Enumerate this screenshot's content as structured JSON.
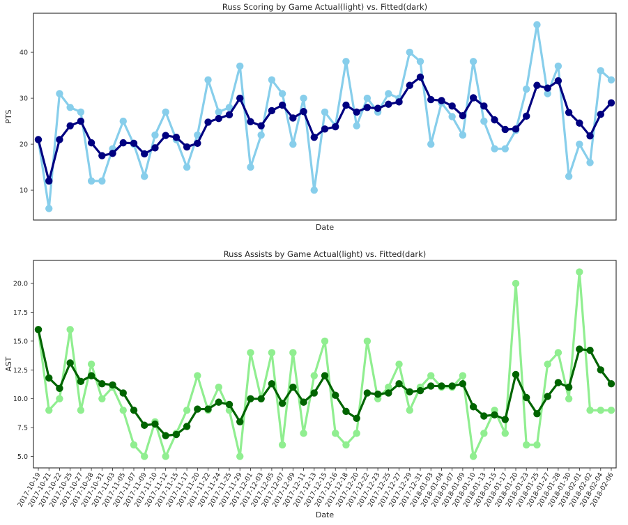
{
  "chart_data": [
    {
      "type": "line",
      "title": "Russ Scoring by Game Actual(light) vs. Fitted(dark)",
      "xlabel": "Date",
      "ylabel": "PTS",
      "ylim": [
        3.5,
        48.5
      ],
      "yticks": [
        10,
        20,
        30,
        40
      ],
      "grid": false,
      "x": [
        "2017-10-19",
        "2017-10-21",
        "2017-10-22",
        "2017-10-25",
        "2017-10-27",
        "2017-10-28",
        "2017-10-31",
        "2017-11-03",
        "2017-11-05",
        "2017-11-07",
        "2017-11-09",
        "2017-11-10",
        "2017-11-12",
        "2017-11-15",
        "2017-11-17",
        "2017-11-20",
        "2017-11-22",
        "2017-11-24",
        "2017-11-25",
        "2017-11-29",
        "2017-12-01",
        "2017-12-03",
        "2017-12-05",
        "2017-12-07",
        "2017-12-09",
        "2017-12-11",
        "2017-12-13",
        "2017-12-15",
        "2017-12-16",
        "2017-12-18",
        "2017-12-20",
        "2017-12-22",
        "2017-12-23",
        "2017-12-25",
        "2017-12-27",
        "2017-12-29",
        "2017-12-31",
        "2018-01-03",
        "2018-01-04",
        "2018-01-07",
        "2018-01-09",
        "2018-01-10",
        "2018-01-13",
        "2018-01-15",
        "2018-01-17",
        "2018-01-20",
        "2018-01-23",
        "2018-01-25",
        "2018-01-27",
        "2018-01-28",
        "2018-01-30",
        "2018-02-01",
        "2018-02-02",
        "2018-02-04",
        "2018-02-06"
      ],
      "series": [
        {
          "name": "Actual",
          "color": "#87ceeb",
          "values": [
            21,
            6,
            31,
            28,
            27,
            12,
            12,
            19,
            25,
            20,
            13,
            22,
            27,
            21,
            15,
            22,
            34,
            27,
            28,
            37,
            15,
            22,
            34,
            31,
            20,
            30,
            10,
            27,
            24,
            38,
            24,
            30,
            27,
            31,
            30,
            40,
            38,
            20,
            29,
            26,
            22,
            38,
            25,
            19,
            19,
            23,
            32,
            46,
            31,
            37,
            13,
            20,
            16,
            36,
            34
          ]
        },
        {
          "name": "Fitted",
          "color": "#000080",
          "values": [
            21,
            12,
            21,
            24,
            25,
            20.3,
            17.5,
            18,
            20.3,
            20.2,
            17.9,
            19.2,
            21.9,
            21.5,
            19.4,
            20.2,
            24.8,
            25.6,
            26.4,
            30,
            24.9,
            24,
            27.3,
            28.5,
            25.7,
            27.1,
            21.5,
            23.3,
            23.8,
            28.5,
            27,
            28,
            27.8,
            28.7,
            29.2,
            32.8,
            34.6,
            29.7,
            29.5,
            28.3,
            26.2,
            30.1,
            28.3,
            25.3,
            23.2,
            23.3,
            26.1,
            32.8,
            32.2,
            33.8,
            26.9,
            24.6,
            21.8,
            26.5,
            29
          ]
        }
      ]
    },
    {
      "type": "line",
      "title": "Russ Assists by Game Actual(light) vs. Fitted(dark)",
      "xlabel": "Date",
      "ylabel": "AST",
      "ylim": [
        4.0,
        22.0
      ],
      "yticks": [
        5.0,
        7.5,
        10.0,
        12.5,
        15.0,
        17.5,
        20.0
      ],
      "ytick_labels": [
        "5.0",
        "7.5",
        "10.0",
        "12.5",
        "15.0",
        "17.5",
        "20.0"
      ],
      "grid": false,
      "x": [
        "2017-10-19",
        "2017-10-21",
        "2017-10-22",
        "2017-10-25",
        "2017-10-27",
        "2017-10-28",
        "2017-10-31",
        "2017-11-03",
        "2017-11-05",
        "2017-11-07",
        "2017-11-09",
        "2017-11-10",
        "2017-11-12",
        "2017-11-15",
        "2017-11-17",
        "2017-11-20",
        "2017-11-22",
        "2017-11-24",
        "2017-11-25",
        "2017-11-29",
        "2017-12-01",
        "2017-12-03",
        "2017-12-05",
        "2017-12-07",
        "2017-12-09",
        "2017-12-11",
        "2017-12-13",
        "2017-12-15",
        "2017-12-16",
        "2017-12-18",
        "2017-12-20",
        "2017-12-22",
        "2017-12-23",
        "2017-12-25",
        "2017-12-27",
        "2017-12-29",
        "2017-12-31",
        "2018-01-03",
        "2018-01-04",
        "2018-01-07",
        "2018-01-09",
        "2018-01-10",
        "2018-01-13",
        "2018-01-15",
        "2018-01-17",
        "2018-01-20",
        "2018-01-23",
        "2018-01-25",
        "2018-01-27",
        "2018-01-28",
        "2018-01-30",
        "2018-02-01",
        "2018-02-02",
        "2018-02-04",
        "2018-02-06"
      ],
      "series": [
        {
          "name": "Actual",
          "color": "#90ee90",
          "values": [
            16,
            9,
            10,
            16,
            9,
            13,
            10,
            11,
            9,
            6,
            5,
            8,
            5,
            7,
            9,
            12,
            9,
            11,
            9,
            5,
            14,
            10,
            14,
            6,
            14,
            7,
            12,
            15,
            7,
            6,
            7,
            15,
            10,
            11,
            13,
            9,
            11,
            12,
            11,
            11,
            12,
            5,
            7,
            9,
            7,
            20,
            6,
            6,
            13,
            14,
            10,
            21,
            9,
            9,
            9
          ]
        },
        {
          "name": "Fitted",
          "color": "#006400",
          "values": [
            16,
            11.8,
            10.9,
            13.1,
            11.5,
            12,
            11.3,
            11.2,
            10.5,
            9,
            7.7,
            7.8,
            6.8,
            6.9,
            7.6,
            9.1,
            9.1,
            9.7,
            9.5,
            8,
            10,
            10,
            11.3,
            9.6,
            11,
            9.7,
            10.5,
            12,
            10.3,
            8.9,
            8.3,
            10.5,
            10.4,
            10.5,
            11.3,
            10.6,
            10.7,
            11.1,
            11.1,
            11.1,
            11.3,
            9.3,
            8.5,
            8.6,
            8.2,
            12.1,
            10.1,
            8.7,
            10.2,
            11.4,
            11,
            14.3,
            14.2,
            12.5,
            11.3
          ]
        }
      ]
    }
  ]
}
